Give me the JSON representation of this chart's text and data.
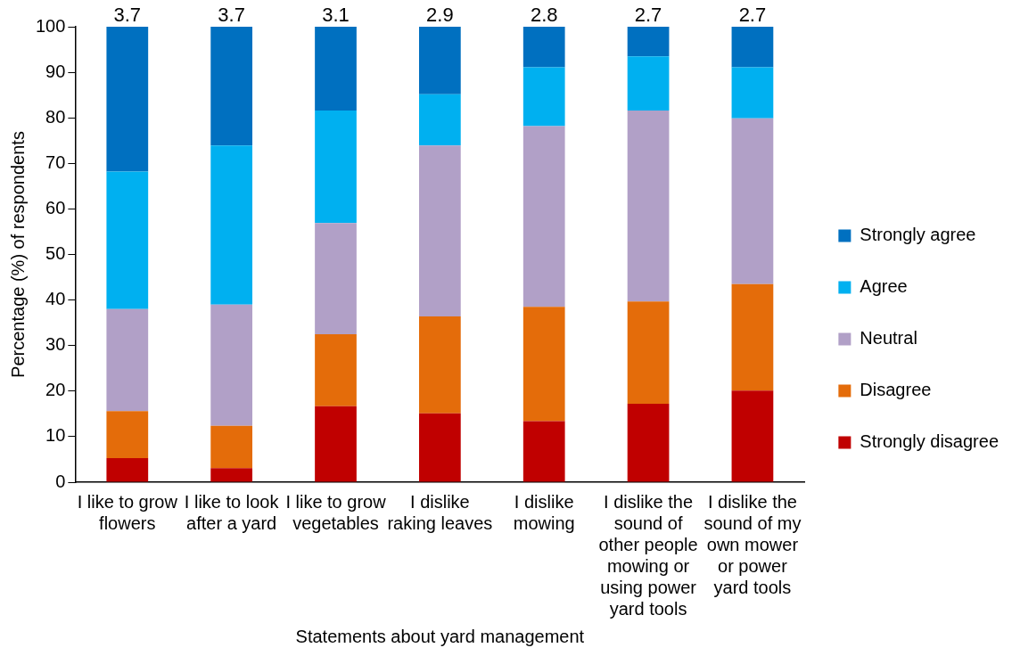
{
  "chart_data": {
    "type": "bar",
    "stacked": true,
    "xlabel": "Statements about yard management",
    "ylabel": "Percentage (%) of respondents",
    "categories": [
      "I like to grow flowers",
      "I like to look after a yard",
      "I like to grow vegetables",
      "I dislike raking leaves",
      "I dislike mowing",
      "I dislike the sound of other people mowing or using power yard tools",
      "I dislike the sound of my own mower or power yard tools"
    ],
    "series": [
      {
        "name": "Strongly disagree",
        "color": "#c00000",
        "values": [
          5.3,
          3.1,
          16.7,
          15.1,
          13.4,
          17.2,
          20.1
        ]
      },
      {
        "name": "Disagree",
        "color": "#e46c0a",
        "values": [
          10.3,
          9.3,
          15.8,
          21.3,
          25.1,
          22.5,
          23.4
        ]
      },
      {
        "name": "Neutral",
        "color": "#b1a0c7",
        "values": [
          22.4,
          26.6,
          24.4,
          37.5,
          39.7,
          41.9,
          36.4
        ]
      },
      {
        "name": "Agree",
        "color": "#00b0f0",
        "values": [
          30.2,
          34.9,
          24.7,
          11.3,
          12.9,
          11.9,
          11.2
        ]
      },
      {
        "name": "Strongly agree",
        "color": "#0070c0",
        "values": [
          31.8,
          26.1,
          18.4,
          14.8,
          8.9,
          6.5,
          8.9
        ]
      }
    ],
    "annotations": [
      {
        "text": "3.7",
        "x": "I like to grow flowers",
        "y": 100
      },
      {
        "text": "3.7",
        "x": "I like to look after a yard",
        "y": 100
      },
      {
        "text": "3.1",
        "x": "I like to grow vegetables",
        "y": 100
      },
      {
        "text": "2.9",
        "x": "I dislike raking leaves",
        "y": 100
      },
      {
        "text": "2.8",
        "x": "I dislike mowing",
        "y": 100
      },
      {
        "text": "2.7",
        "x": "I dislike the sound of other people mowing or using power yard tools",
        "y": 100
      },
      {
        "text": "2.7",
        "x": "I dislike the sound of my own mower or power yard tools",
        "y": 100
      }
    ],
    "ylim": [
      0,
      100
    ],
    "yticks": [
      0,
      10,
      20,
      30,
      40,
      50,
      60,
      70,
      80,
      90,
      100
    ],
    "grid": false,
    "legend": "right"
  }
}
